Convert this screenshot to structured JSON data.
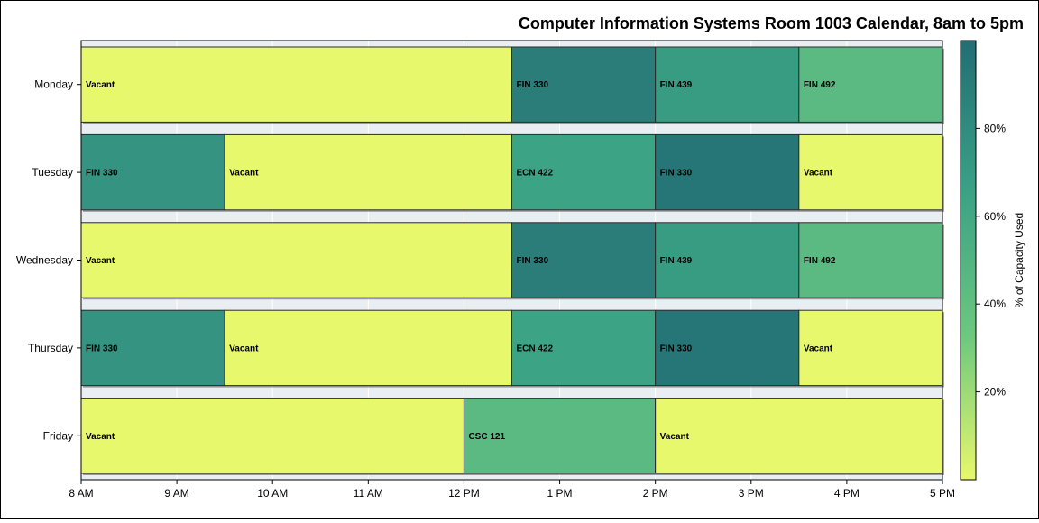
{
  "chart_data": {
    "type": "bar",
    "orientation": "horizontal-timeline",
    "title": "Computer Information Systems Room 1003 Calendar, 8am to 5pm",
    "xlabel": "",
    "ylabel": "",
    "x_ticks": [
      "8 AM",
      "9 AM",
      "10 AM",
      "11 AM",
      "12 PM",
      "1 PM",
      "2 PM",
      "3 PM",
      "4 PM",
      "5 PM"
    ],
    "xlim": [
      8,
      17
    ],
    "categories": [
      "Monday",
      "Tuesday",
      "Wednesday",
      "Thursday",
      "Friday"
    ],
    "grid": true,
    "colorbar": {
      "label": "% of Capacity Used",
      "range": [
        0,
        100
      ],
      "ticks": [
        "20%",
        "40%",
        "60%",
        "80%"
      ],
      "tick_values": [
        20,
        40,
        60,
        80
      ],
      "colors": [
        "#e8f86c",
        "#6cc77f",
        "#3aa185",
        "#236d74"
      ]
    },
    "series": [
      {
        "day": "Monday",
        "blocks": [
          {
            "label": "Vacant",
            "start": 8,
            "end": 12.5,
            "capacity": 0
          },
          {
            "label": "FIN 330",
            "start": 12.5,
            "end": 14,
            "capacity": 90
          },
          {
            "label": "FIN 439",
            "start": 14,
            "end": 15.5,
            "capacity": 70
          },
          {
            "label": "FIN 492",
            "start": 15.5,
            "end": 17,
            "capacity": 45
          }
        ]
      },
      {
        "day": "Tuesday",
        "blocks": [
          {
            "label": "FIN 330",
            "start": 8,
            "end": 9.5,
            "capacity": 75
          },
          {
            "label": "Vacant",
            "start": 9.5,
            "end": 12.5,
            "capacity": 0
          },
          {
            "label": "ECN 422",
            "start": 12.5,
            "end": 14,
            "capacity": 65
          },
          {
            "label": "FIN 330",
            "start": 14,
            "end": 15.5,
            "capacity": 95
          },
          {
            "label": "Vacant",
            "start": 15.5,
            "end": 17,
            "capacity": 0
          }
        ]
      },
      {
        "day": "Wednesday",
        "blocks": [
          {
            "label": "Vacant",
            "start": 8,
            "end": 12.5,
            "capacity": 0
          },
          {
            "label": "FIN 330",
            "start": 12.5,
            "end": 14,
            "capacity": 90
          },
          {
            "label": "FIN 439",
            "start": 14,
            "end": 15.5,
            "capacity": 70
          },
          {
            "label": "FIN 492",
            "start": 15.5,
            "end": 17,
            "capacity": 45
          }
        ]
      },
      {
        "day": "Thursday",
        "blocks": [
          {
            "label": "FIN 330",
            "start": 8,
            "end": 9.5,
            "capacity": 75
          },
          {
            "label": "Vacant",
            "start": 9.5,
            "end": 12.5,
            "capacity": 0
          },
          {
            "label": "ECN 422",
            "start": 12.5,
            "end": 14,
            "capacity": 65
          },
          {
            "label": "FIN 330",
            "start": 14,
            "end": 15.5,
            "capacity": 95
          },
          {
            "label": "Vacant",
            "start": 15.5,
            "end": 17,
            "capacity": 0
          }
        ]
      },
      {
        "day": "Friday",
        "blocks": [
          {
            "label": "Vacant",
            "start": 8,
            "end": 12,
            "capacity": 0
          },
          {
            "label": "CSC 121",
            "start": 12,
            "end": 14,
            "capacity": 45
          },
          {
            "label": "Vacant",
            "start": 14,
            "end": 17,
            "capacity": 0
          }
        ]
      }
    ]
  }
}
